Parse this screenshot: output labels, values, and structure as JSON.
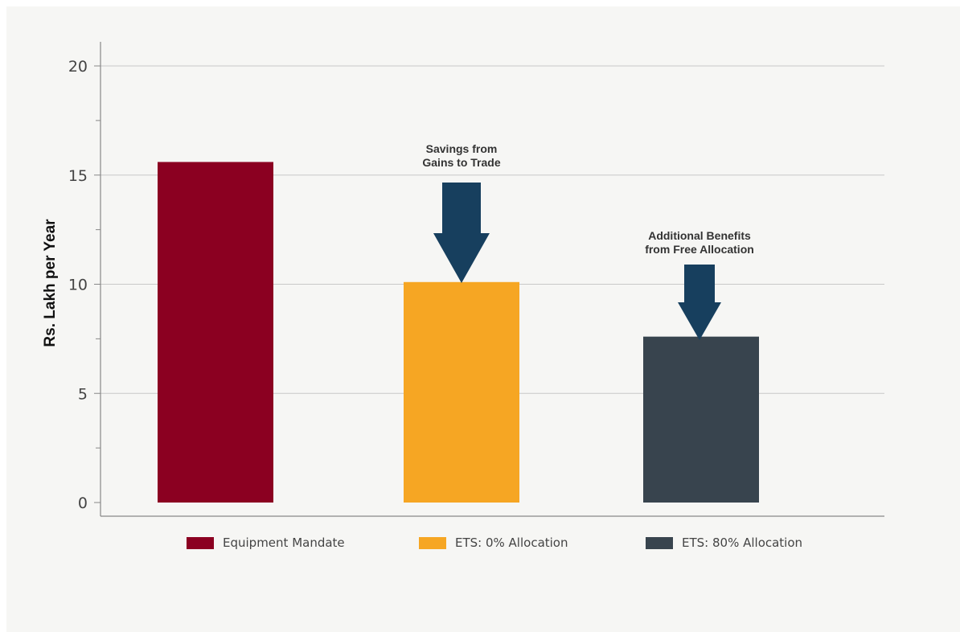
{
  "chart_data": {
    "type": "bar",
    "categories": [
      "Equipment Mandate",
      "ETS: 0% Allocation",
      "ETS: 80% Allocation"
    ],
    "values": [
      15.6,
      10.1,
      7.6
    ],
    "colors": [
      "#8b0021",
      "#f6a623",
      "#38444e"
    ],
    "ylabel": "Rs. Lakh per Year",
    "xlabel": "",
    "ylim": [
      0,
      20
    ],
    "yticks": [
      0,
      5,
      10,
      15,
      20
    ],
    "grid": true,
    "legend_position": "bottom",
    "annotations": [
      {
        "text": [
          "Savings from",
          "Gains to Trade"
        ],
        "points_to": "ETS: 0% Allocation",
        "arrow_color": "#173f5e"
      },
      {
        "text": [
          "Additional Benefits",
          "from Free Allocation"
        ],
        "points_to": "ETS: 80% Allocation",
        "arrow_color": "#173f5e"
      }
    ]
  }
}
